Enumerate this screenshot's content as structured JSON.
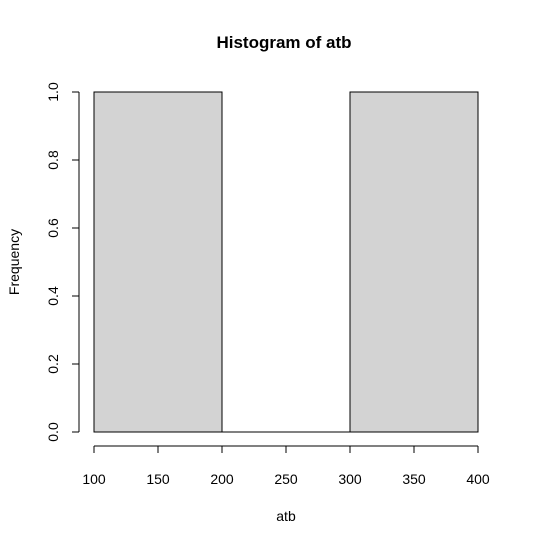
{
  "chart_data": {
    "type": "bar",
    "title": "Histogram of atb",
    "xlabel": "atb",
    "ylabel": "Frequency",
    "xlim": [
      100,
      400
    ],
    "ylim": [
      0,
      1
    ],
    "x_ticks": [
      "100",
      "150",
      "200",
      "250",
      "300",
      "350",
      "400"
    ],
    "y_ticks": [
      "0.0",
      "0.2",
      "0.4",
      "0.6",
      "0.8",
      "1.0"
    ],
    "bins": [
      {
        "start": 100,
        "end": 200,
        "value": 1
      },
      {
        "start": 200,
        "end": 300,
        "value": 0
      },
      {
        "start": 300,
        "end": 400,
        "value": 1
      }
    ],
    "bar_fill": "#d3d3d3",
    "bar_stroke": "#000000",
    "grid": false
  }
}
